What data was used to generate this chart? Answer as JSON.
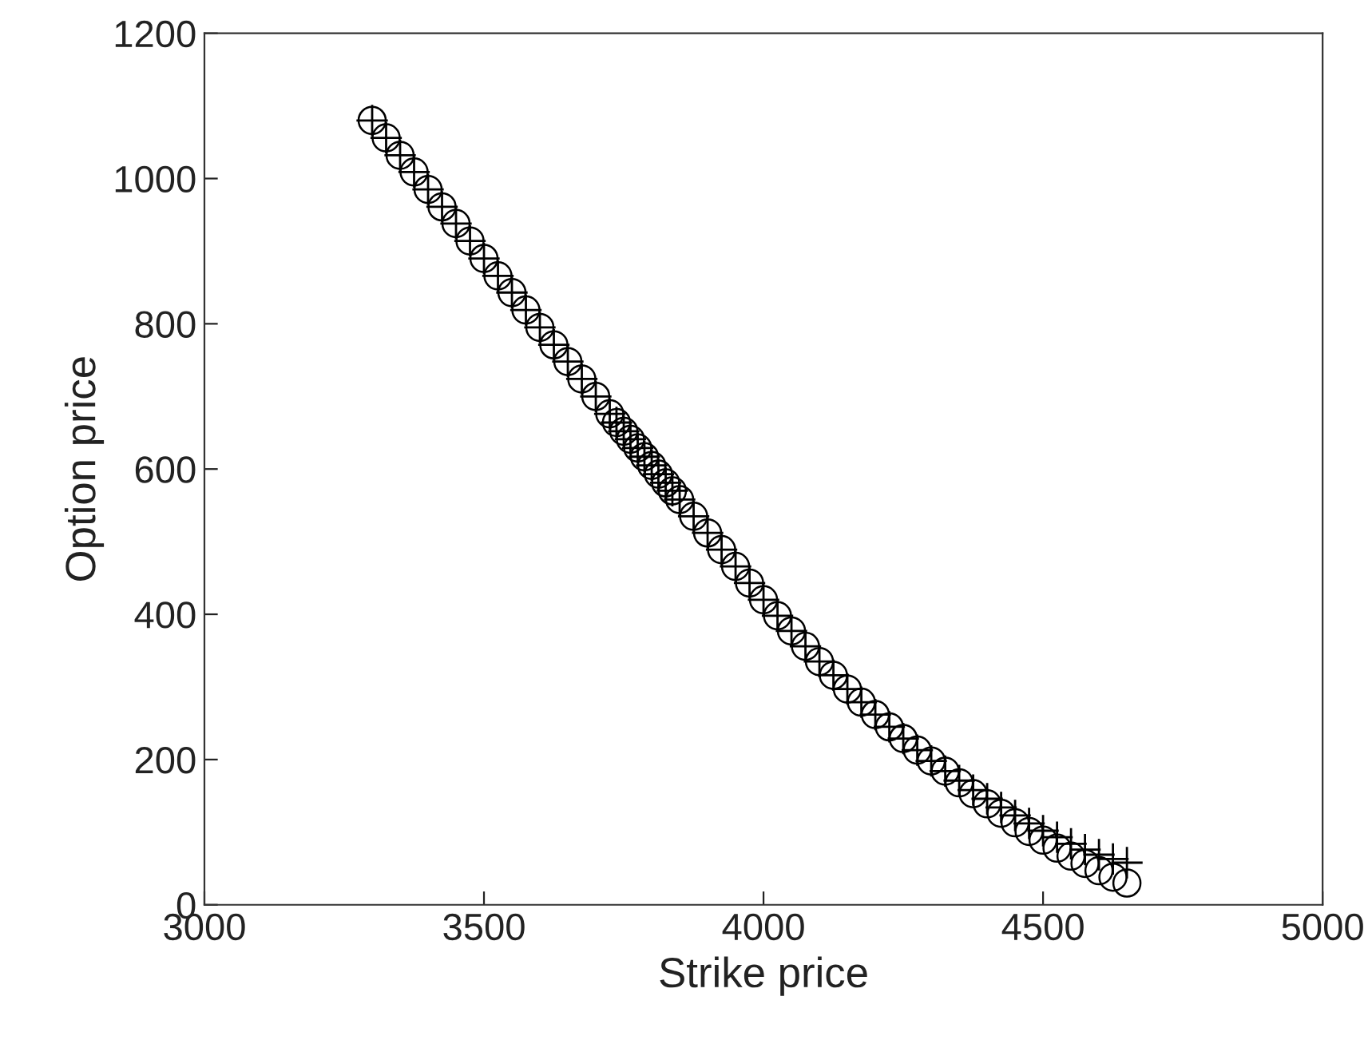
{
  "chart_data": {
    "type": "scatter",
    "xlabel": "Strike price",
    "ylabel": "Option price",
    "xlim": [
      3000,
      5000
    ],
    "ylim": [
      0,
      1200
    ],
    "xticks": [
      3000,
      3500,
      4000,
      4500,
      5000
    ],
    "yticks": [
      0,
      200,
      400,
      600,
      800,
      1000,
      1200
    ],
    "grid": false,
    "legend": false,
    "x": [
      3300,
      3325,
      3350,
      3375,
      3400,
      3425,
      3450,
      3475,
      3500,
      3525,
      3550,
      3575,
      3600,
      3625,
      3650,
      3675,
      3700,
      3725,
      3737,
      3750,
      3762,
      3775,
      3787,
      3800,
      3812,
      3825,
      3837,
      3850,
      3875,
      3900,
      3925,
      3950,
      3975,
      4000,
      4025,
      4050,
      4075,
      4100,
      4125,
      4150,
      4175,
      4200,
      4225,
      4250,
      4275,
      4300,
      4325,
      4350,
      4375,
      4400,
      4425,
      4450,
      4475,
      4500,
      4525,
      4550,
      4575,
      4600,
      4625,
      4650
    ],
    "series": [
      {
        "color": "#000000",
        "marker": "circle",
        "values": [
          1080,
          1056,
          1032,
          1009,
          985,
          961,
          938,
          914,
          890,
          866,
          843,
          819,
          795,
          771,
          748,
          724,
          700,
          676,
          664,
          652,
          641,
          629,
          617,
          605,
          593,
          581,
          570,
          558,
          535,
          512,
          489,
          466,
          443,
          420,
          398,
          377,
          356,
          335,
          316,
          297,
          279,
          262,
          245,
          229,
          213,
          198,
          184,
          168,
          153,
          139,
          126,
          113,
          101,
          89,
          78,
          67,
          57,
          47,
          38,
          30
        ]
      },
      {
        "color": "#000000",
        "marker": "cross",
        "values": [
          1080,
          1056,
          1032,
          1009,
          985,
          961,
          938,
          914,
          890,
          866,
          843,
          819,
          795,
          771,
          748,
          724,
          700,
          676,
          664,
          652,
          641,
          629,
          617,
          605,
          593,
          581,
          570,
          558,
          535,
          512,
          489,
          466,
          443,
          420,
          398,
          377,
          356,
          335,
          316,
          297,
          279,
          262,
          245,
          229,
          213,
          198,
          184,
          171,
          158,
          146,
          134,
          123,
          112,
          102,
          93,
          84,
          76,
          69,
          63,
          58
        ]
      }
    ]
  }
}
